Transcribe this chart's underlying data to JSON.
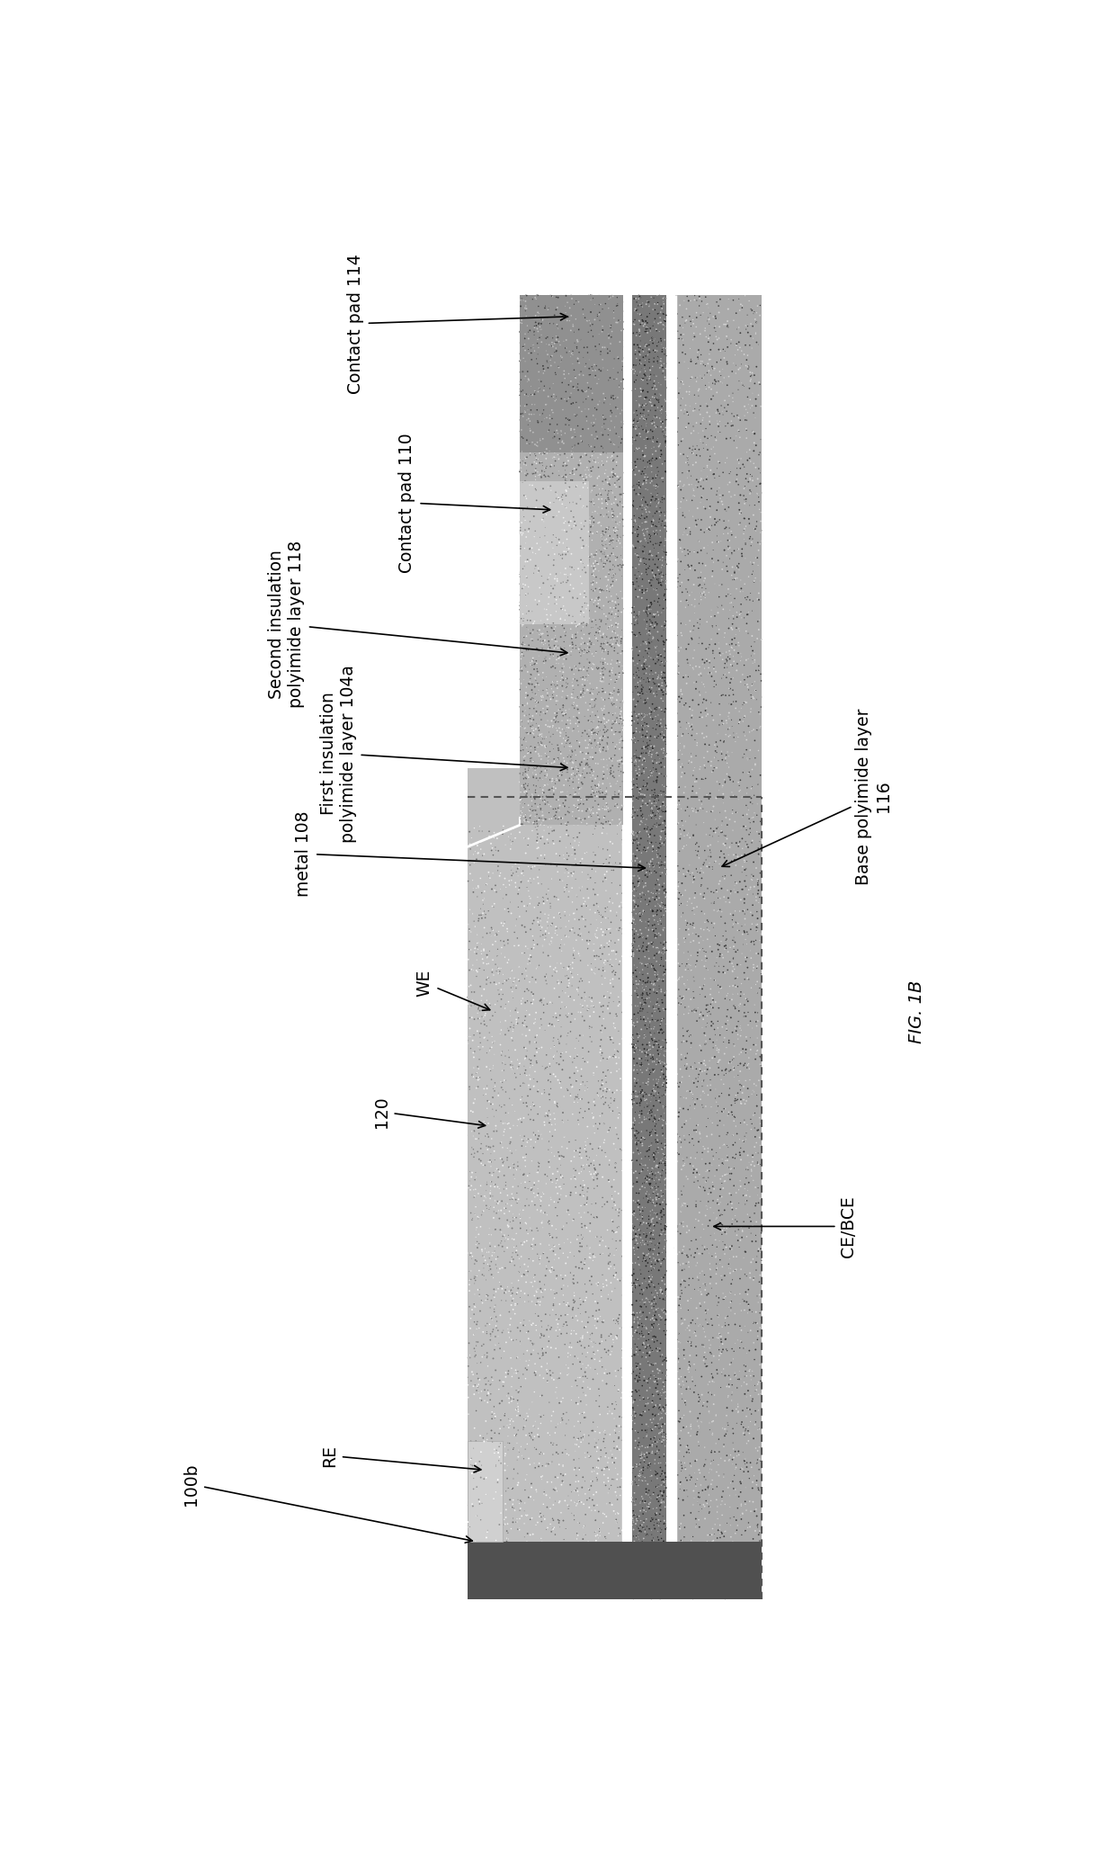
{
  "figsize": [
    12.4,
    20.69
  ],
  "dpi": 100,
  "background_color": "#ffffff",
  "fig_label": "FIG. 1B",
  "device_label": "100b",
  "colors": {
    "base_pi": "#aaaaaa",
    "metal": "#787878",
    "first_ins": "#c0c0c0",
    "second_ins": "#b0b0b0",
    "cp114": "#909090",
    "cp110": "#c8c8c8",
    "re_elec": "#d0d0d0",
    "we_elec": "#c0c0c0",
    "dark_bottom": "#505050",
    "white_line": "#ffffff",
    "dashed_line": "#555555"
  },
  "xlim": [
    0,
    100
  ],
  "ylim": [
    0,
    100
  ],
  "notes": "x=horizontal (layer stack direction, right=base), y=vertical (device length, top=contact pads). Device runs vertically center of figure. All text rotated 90deg."
}
